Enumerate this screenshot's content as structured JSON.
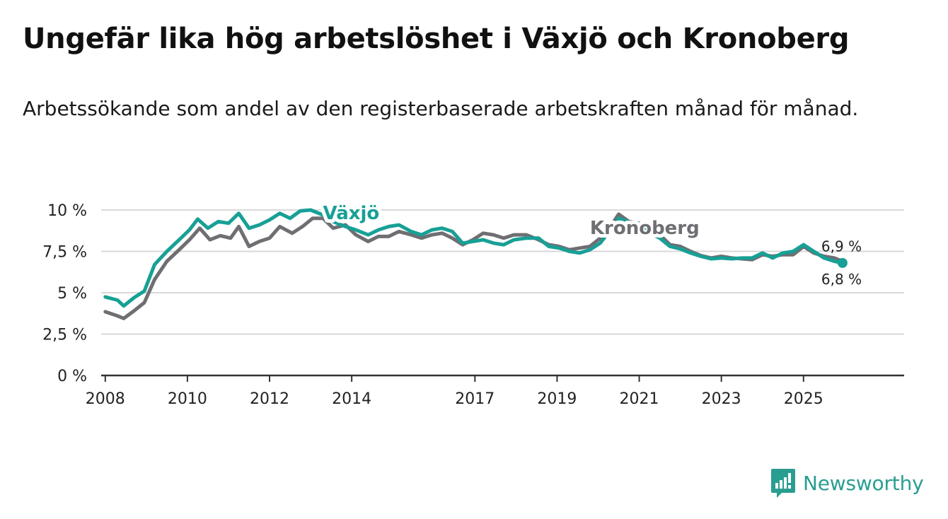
{
  "header": {
    "title": "Ungefär lika hög arbetslöshet i Växjö och Kronoberg",
    "subtitle": "Arbetssökande som andel av den registerbaserade arbetskraften månad för månad."
  },
  "brand": {
    "name": "Newsworthy",
    "color": "#2a9d91",
    "icon": "newsworthy-logo-icon"
  },
  "chart_data": {
    "type": "line",
    "title": "Ungefär lika hög arbetslöshet i Växjö och Kronoberg",
    "xlabel": "",
    "ylabel": "",
    "xlim": [
      2007.9,
      2027.45
    ],
    "ylim": [
      0,
      10
    ],
    "y_ticks": [
      {
        "value": 0,
        "label": "0 %"
      },
      {
        "value": 2.5,
        "label": "2,5 %"
      },
      {
        "value": 5,
        "label": "5 %"
      },
      {
        "value": 7.5,
        "label": "7,5 %"
      },
      {
        "value": 10,
        "label": "10 %"
      }
    ],
    "x_ticks": [
      {
        "value": 2008,
        "label": "2008"
      },
      {
        "value": 2010,
        "label": "2010"
      },
      {
        "value": 2012,
        "label": "2012"
      },
      {
        "value": 2014,
        "label": "2014"
      },
      {
        "value": 2017,
        "label": "2017"
      },
      {
        "value": 2019,
        "label": "2019"
      },
      {
        "value": 2021,
        "label": "2021"
      },
      {
        "value": 2023,
        "label": "2023"
      },
      {
        "value": 2025,
        "label": "2025"
      }
    ],
    "grid": true,
    "series": [
      {
        "name": "Kronoberg",
        "color": "#6e6e73",
        "label_pos": {
          "x": 2019.8,
          "y": 8.55
        },
        "end_label": "6,9 %",
        "points": [
          [
            2008.0,
            3.85
          ],
          [
            2008.3,
            3.6
          ],
          [
            2008.45,
            3.45
          ],
          [
            2008.7,
            3.9
          ],
          [
            2008.95,
            4.4
          ],
          [
            2009.2,
            5.8
          ],
          [
            2009.5,
            6.9
          ],
          [
            2009.8,
            7.6
          ],
          [
            2010.05,
            8.2
          ],
          [
            2010.3,
            8.9
          ],
          [
            2010.55,
            8.2
          ],
          [
            2010.8,
            8.45
          ],
          [
            2011.05,
            8.3
          ],
          [
            2011.25,
            9.0
          ],
          [
            2011.5,
            7.8
          ],
          [
            2011.75,
            8.1
          ],
          [
            2012.0,
            8.3
          ],
          [
            2012.25,
            9.0
          ],
          [
            2012.55,
            8.6
          ],
          [
            2012.8,
            9.0
          ],
          [
            2013.05,
            9.5
          ],
          [
            2013.3,
            9.5
          ],
          [
            2013.55,
            8.9
          ],
          [
            2013.85,
            9.1
          ],
          [
            2014.1,
            8.5
          ],
          [
            2014.4,
            8.1
          ],
          [
            2014.65,
            8.4
          ],
          [
            2014.9,
            8.4
          ],
          [
            2015.15,
            8.7
          ],
          [
            2015.45,
            8.5
          ],
          [
            2015.7,
            8.3
          ],
          [
            2015.95,
            8.5
          ],
          [
            2016.2,
            8.6
          ],
          [
            2016.45,
            8.3
          ],
          [
            2016.7,
            7.9
          ],
          [
            2016.95,
            8.2
          ],
          [
            2017.2,
            8.6
          ],
          [
            2017.45,
            8.5
          ],
          [
            2017.7,
            8.3
          ],
          [
            2017.95,
            8.5
          ],
          [
            2018.25,
            8.5
          ],
          [
            2018.55,
            8.2
          ],
          [
            2018.8,
            7.9
          ],
          [
            2019.05,
            7.8
          ],
          [
            2019.3,
            7.6
          ],
          [
            2019.55,
            7.7
          ],
          [
            2019.8,
            7.8
          ],
          [
            2020.05,
            8.3
          ],
          [
            2020.3,
            9.0
          ],
          [
            2020.5,
            9.75
          ],
          [
            2020.75,
            9.3
          ],
          [
            2021.0,
            9.2
          ],
          [
            2021.25,
            8.8
          ],
          [
            2021.5,
            8.5
          ],
          [
            2021.75,
            7.9
          ],
          [
            2022.0,
            7.8
          ],
          [
            2022.25,
            7.5
          ],
          [
            2022.5,
            7.25
          ],
          [
            2022.75,
            7.1
          ],
          [
            2023.0,
            7.2
          ],
          [
            2023.25,
            7.1
          ],
          [
            2023.5,
            7.05
          ],
          [
            2023.75,
            7.0
          ],
          [
            2024.0,
            7.3
          ],
          [
            2024.25,
            7.2
          ],
          [
            2024.5,
            7.3
          ],
          [
            2024.75,
            7.3
          ],
          [
            2025.0,
            7.8
          ],
          [
            2025.25,
            7.4
          ],
          [
            2025.5,
            7.2
          ],
          [
            2025.75,
            7.1
          ],
          [
            2025.95,
            6.9
          ]
        ]
      },
      {
        "name": "Växjö",
        "color": "#17a096",
        "label_pos": {
          "x": 2013.3,
          "y": 9.45
        },
        "end_label": "6,8 %",
        "points": [
          [
            2008.0,
            4.75
          ],
          [
            2008.3,
            4.55
          ],
          [
            2008.45,
            4.2
          ],
          [
            2008.7,
            4.7
          ],
          [
            2008.95,
            5.1
          ],
          [
            2009.2,
            6.7
          ],
          [
            2009.5,
            7.5
          ],
          [
            2009.8,
            8.2
          ],
          [
            2010.05,
            8.8
          ],
          [
            2010.25,
            9.45
          ],
          [
            2010.5,
            8.9
          ],
          [
            2010.75,
            9.3
          ],
          [
            2011.0,
            9.2
          ],
          [
            2011.25,
            9.8
          ],
          [
            2011.5,
            8.9
          ],
          [
            2011.75,
            9.1
          ],
          [
            2012.0,
            9.4
          ],
          [
            2012.25,
            9.8
          ],
          [
            2012.5,
            9.5
          ],
          [
            2012.75,
            9.95
          ],
          [
            2013.0,
            10.0
          ],
          [
            2013.3,
            9.7
          ],
          [
            2013.55,
            9.3
          ],
          [
            2013.85,
            9.0
          ],
          [
            2014.1,
            8.8
          ],
          [
            2014.4,
            8.5
          ],
          [
            2014.65,
            8.8
          ],
          [
            2014.9,
            9.0
          ],
          [
            2015.15,
            9.1
          ],
          [
            2015.45,
            8.7
          ],
          [
            2015.7,
            8.5
          ],
          [
            2015.95,
            8.8
          ],
          [
            2016.2,
            8.9
          ],
          [
            2016.45,
            8.7
          ],
          [
            2016.7,
            8.0
          ],
          [
            2016.95,
            8.1
          ],
          [
            2017.2,
            8.2
          ],
          [
            2017.45,
            8.0
          ],
          [
            2017.7,
            7.9
          ],
          [
            2017.95,
            8.2
          ],
          [
            2018.25,
            8.3
          ],
          [
            2018.55,
            8.3
          ],
          [
            2018.8,
            7.8
          ],
          [
            2019.05,
            7.7
          ],
          [
            2019.3,
            7.5
          ],
          [
            2019.55,
            7.4
          ],
          [
            2019.8,
            7.6
          ],
          [
            2020.05,
            8.0
          ],
          [
            2020.3,
            8.8
          ],
          [
            2020.5,
            9.5
          ],
          [
            2020.75,
            9.25
          ],
          [
            2021.0,
            9.1
          ],
          [
            2021.25,
            8.6
          ],
          [
            2021.5,
            8.3
          ],
          [
            2021.75,
            7.8
          ],
          [
            2022.0,
            7.65
          ],
          [
            2022.25,
            7.4
          ],
          [
            2022.5,
            7.2
          ],
          [
            2022.75,
            7.05
          ],
          [
            2023.0,
            7.1
          ],
          [
            2023.25,
            7.05
          ],
          [
            2023.5,
            7.1
          ],
          [
            2023.75,
            7.1
          ],
          [
            2024.0,
            7.4
          ],
          [
            2024.25,
            7.1
          ],
          [
            2024.5,
            7.4
          ],
          [
            2024.75,
            7.5
          ],
          [
            2025.0,
            7.9
          ],
          [
            2025.25,
            7.5
          ],
          [
            2025.5,
            7.1
          ],
          [
            2025.75,
            6.9
          ],
          [
            2025.95,
            6.8
          ]
        ]
      }
    ]
  }
}
